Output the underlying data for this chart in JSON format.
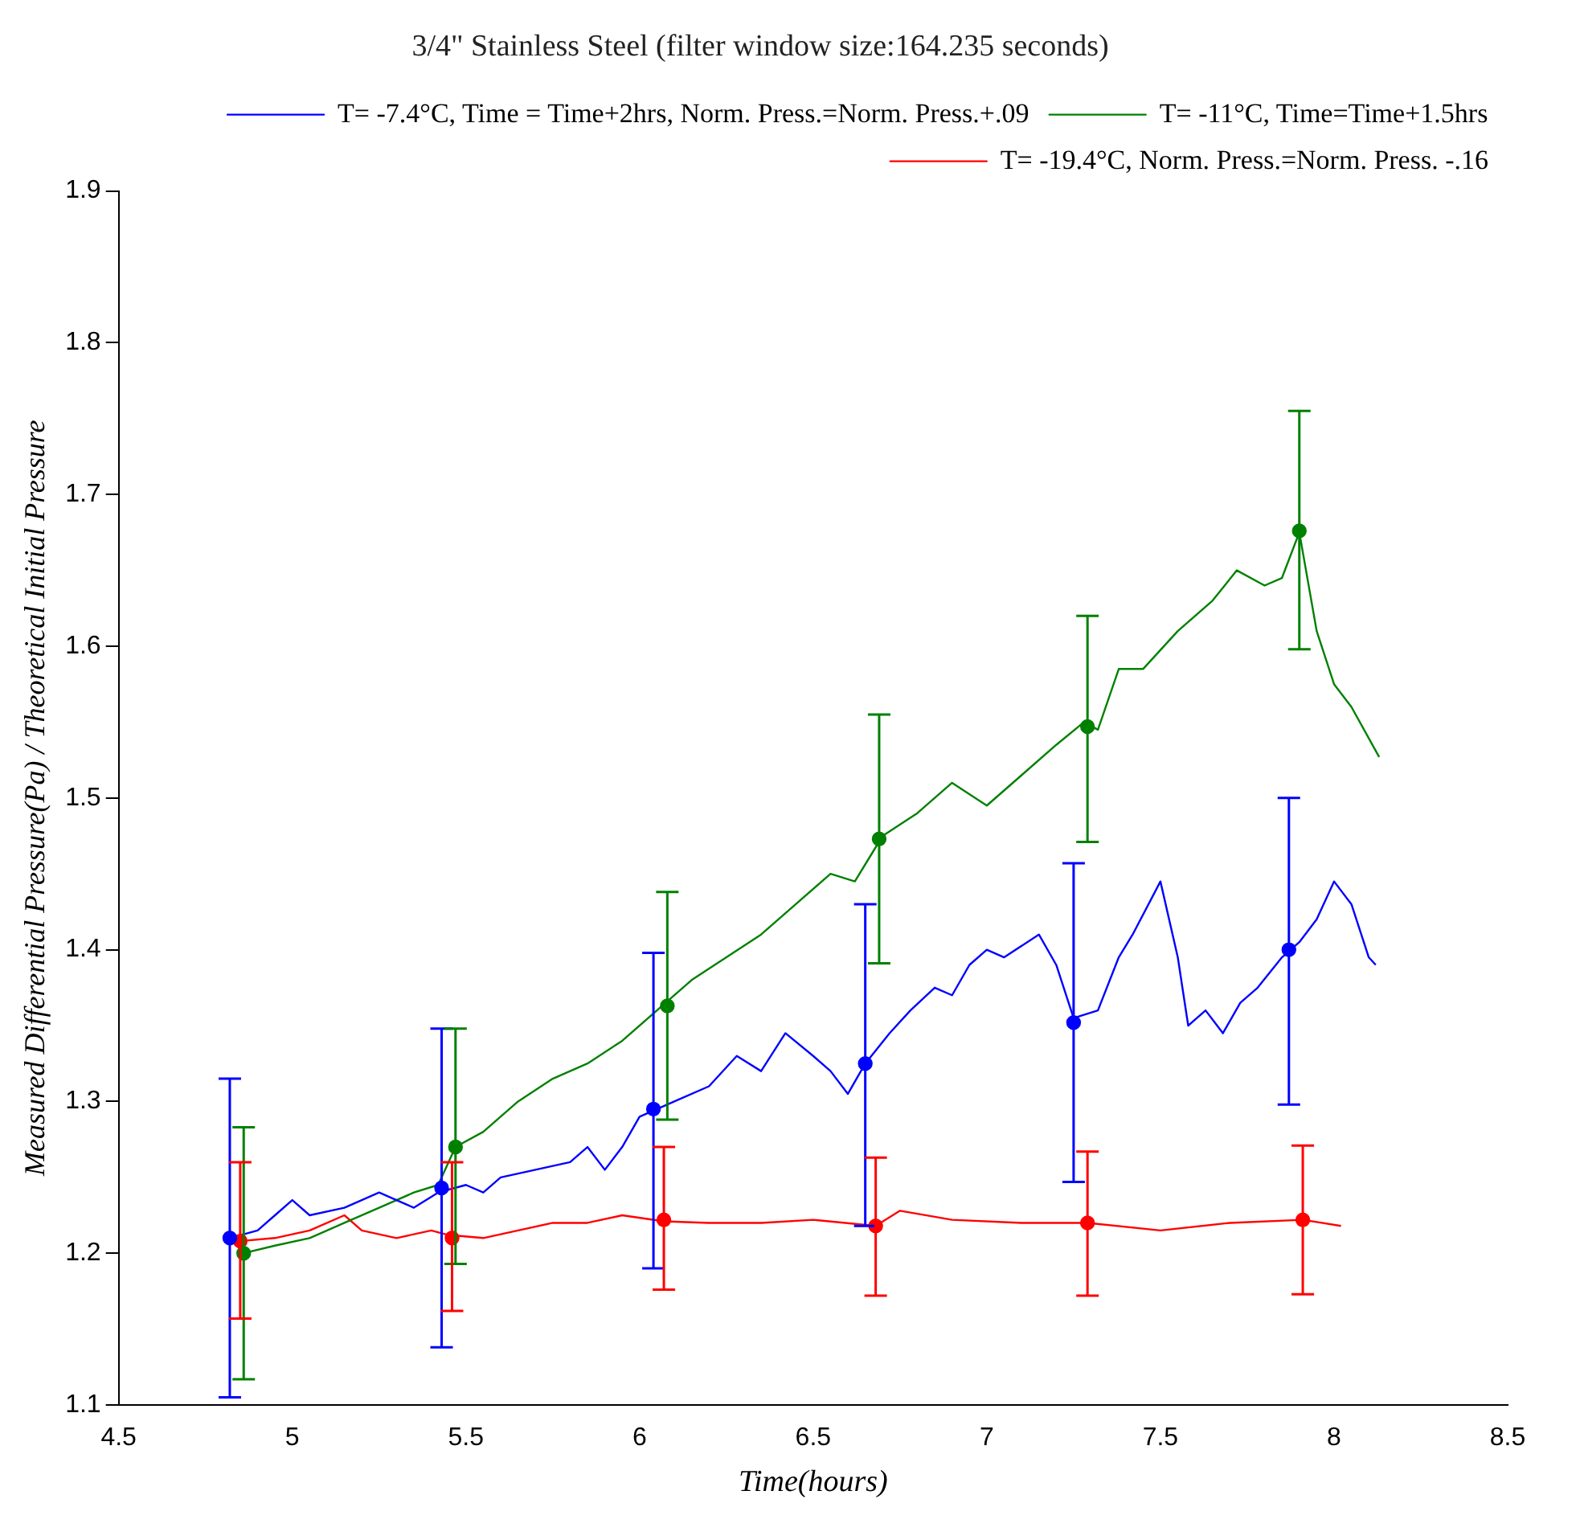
{
  "chart_data": {
    "type": "line",
    "title": "3/4\" Stainless Steel (filter window size:164.235 seconds)",
    "xlabel": "Time(hours)",
    "ylabel": "Measured Differential Pressure(Pa) / Theoretical Initial Pressure",
    "xlim": [
      4.5,
      8.5
    ],
    "xticks": [
      4.5,
      5,
      5.5,
      6,
      6.5,
      7,
      7.5,
      8,
      8.5
    ],
    "ylim": [
      1.1,
      1.9
    ],
    "yticks": [
      1.1,
      1.2,
      1.3,
      1.4,
      1.5,
      1.6,
      1.7,
      1.8,
      1.9
    ],
    "grid": false,
    "legend": "top right",
    "line_style": "solid",
    "series": [
      {
        "name": "T= -7.4°C, Time = Time+2hrs, Norm. Press.=Norm. Press.+.09",
        "color": "#0000ff",
        "marker": "none",
        "x": [
          4.82,
          4.9,
          4.95,
          5.0,
          5.05,
          5.15,
          5.25,
          5.3,
          5.35,
          5.42,
          5.5,
          5.55,
          5.6,
          5.7,
          5.8,
          5.85,
          5.9,
          5.95,
          6.0,
          6.05,
          6.1,
          6.2,
          6.28,
          6.35,
          6.42,
          6.5,
          6.55,
          6.6,
          6.65,
          6.72,
          6.78,
          6.85,
          6.9,
          6.95,
          7.0,
          7.05,
          7.15,
          7.2,
          7.25,
          7.32,
          7.38,
          7.42,
          7.5,
          7.55,
          7.58,
          7.63,
          7.68,
          7.73,
          7.78,
          7.85,
          7.9,
          7.95,
          8.0,
          8.05,
          8.1,
          8.12
        ],
        "values": [
          1.21,
          1.215,
          1.225,
          1.235,
          1.225,
          1.23,
          1.24,
          1.235,
          1.23,
          1.24,
          1.245,
          1.24,
          1.25,
          1.255,
          1.26,
          1.27,
          1.255,
          1.27,
          1.29,
          1.295,
          1.3,
          1.31,
          1.33,
          1.32,
          1.345,
          1.33,
          1.32,
          1.305,
          1.325,
          1.345,
          1.36,
          1.375,
          1.37,
          1.39,
          1.4,
          1.395,
          1.41,
          1.39,
          1.355,
          1.36,
          1.395,
          1.41,
          1.445,
          1.395,
          1.35,
          1.36,
          1.345,
          1.365,
          1.375,
          1.395,
          1.405,
          1.42,
          1.445,
          1.43,
          1.395,
          1.39
        ]
      },
      {
        "name": "T= -11°C, Time=Time+1.5hrs",
        "color": "#008000",
        "marker": "none",
        "x": [
          4.86,
          4.95,
          5.05,
          5.15,
          5.25,
          5.35,
          5.42,
          5.47,
          5.55,
          5.65,
          5.75,
          5.85,
          5.95,
          6.05,
          6.15,
          6.25,
          6.35,
          6.45,
          6.55,
          6.62,
          6.7,
          6.8,
          6.9,
          7.0,
          7.1,
          7.2,
          7.28,
          7.32,
          7.38,
          7.45,
          7.55,
          7.65,
          7.72,
          7.8,
          7.85,
          7.9,
          7.95,
          8.0,
          8.05,
          8.13
        ],
        "values": [
          1.2,
          1.205,
          1.21,
          1.22,
          1.23,
          1.24,
          1.245,
          1.27,
          1.28,
          1.3,
          1.315,
          1.325,
          1.34,
          1.36,
          1.38,
          1.395,
          1.41,
          1.43,
          1.45,
          1.445,
          1.475,
          1.49,
          1.51,
          1.495,
          1.515,
          1.535,
          1.55,
          1.545,
          1.585,
          1.585,
          1.61,
          1.63,
          1.65,
          1.64,
          1.645,
          1.675,
          1.61,
          1.575,
          1.56,
          1.527
        ]
      },
      {
        "name": "T= -19.4°C, Norm. Press.=Norm. Press. -.16",
        "color": "#ff0000",
        "marker": "none",
        "x": [
          4.85,
          4.95,
          5.05,
          5.15,
          5.2,
          5.3,
          5.4,
          5.45,
          5.55,
          5.65,
          5.75,
          5.85,
          5.95,
          6.07,
          6.2,
          6.35,
          6.5,
          6.68,
          6.75,
          6.9,
          7.1,
          7.29,
          7.5,
          7.7,
          7.91,
          8.02
        ],
        "values": [
          1.208,
          1.21,
          1.215,
          1.225,
          1.215,
          1.21,
          1.215,
          1.212,
          1.21,
          1.215,
          1.22,
          1.22,
          1.225,
          1.221,
          1.22,
          1.22,
          1.222,
          1.218,
          1.228,
          1.222,
          1.22,
          1.22,
          1.215,
          1.22,
          1.222,
          1.218
        ]
      },
      {
        "type": "scatter",
        "color": "#0000ff",
        "marker": "circle",
        "x": [
          4.82,
          5.43,
          6.04,
          6.65,
          7.25,
          7.87
        ],
        "values": [
          1.21,
          1.243,
          1.295,
          1.325,
          1.352,
          1.4
        ],
        "errors": [
          [
            1.105,
            1.315
          ],
          [
            1.138,
            1.348
          ],
          [
            1.19,
            1.398
          ],
          [
            1.218,
            1.43
          ],
          [
            1.247,
            1.457
          ],
          [
            1.298,
            1.5
          ]
        ]
      },
      {
        "type": "scatter",
        "color": "#008000",
        "marker": "circle",
        "x": [
          4.86,
          5.47,
          6.08,
          6.69,
          7.29,
          7.9
        ],
        "values": [
          1.2,
          1.27,
          1.363,
          1.473,
          1.547,
          1.676
        ],
        "errors": [
          [
            1.117,
            1.283
          ],
          [
            1.193,
            1.348
          ],
          [
            1.288,
            1.438
          ],
          [
            1.391,
            1.555
          ],
          [
            1.471,
            1.62
          ],
          [
            1.598,
            1.755
          ]
        ]
      },
      {
        "type": "scatter",
        "color": "#ff0000",
        "marker": "circle",
        "x": [
          4.85,
          5.46,
          6.07,
          6.68,
          7.29,
          7.91
        ],
        "values": [
          1.208,
          1.21,
          1.222,
          1.218,
          1.22,
          1.222
        ],
        "errors": [
          [
            1.157,
            1.26
          ],
          [
            1.162,
            1.26
          ],
          [
            1.176,
            1.27
          ],
          [
            1.172,
            1.263
          ],
          [
            1.172,
            1.267
          ],
          [
            1.173,
            1.271
          ]
        ]
      }
    ]
  }
}
